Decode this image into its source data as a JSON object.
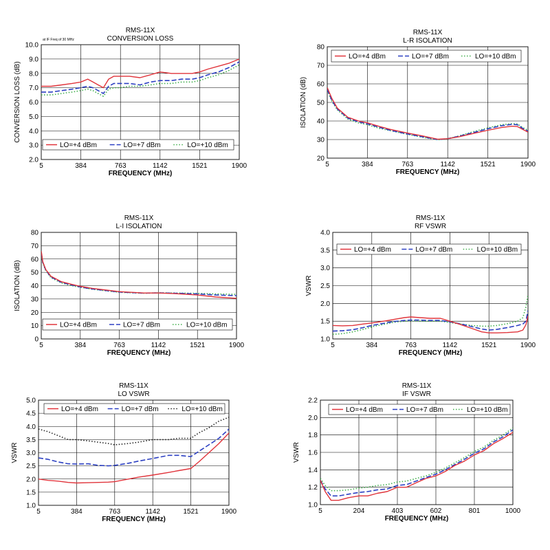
{
  "chart_data": [
    {
      "type": "line",
      "title": "RMS-11X",
      "subtitle": "CONVERSION LOSS",
      "annotation": "at IF Freq of 30 MHz",
      "xlabel": "FREQUENCY (MHz)",
      "ylabel": "CONVERSION LOSS (dB)",
      "x_ticks": [
        "5",
        "384",
        "763",
        "1142",
        "1521",
        "1900"
      ],
      "xlim": [
        5,
        1900
      ],
      "ylim": [
        2.0,
        10.0
      ],
      "y_ticks": [
        "2.0",
        "3.0",
        "4.0",
        "5.0",
        "6.0",
        "7.0",
        "8.0",
        "9.0",
        "10.0"
      ],
      "legend": "bottom",
      "grid": true,
      "series": [
        {
          "name": "LO=+4 dBm",
          "color": "#e0333a",
          "dash": "solid",
          "x": [
            5,
            100,
            200,
            300,
            384,
            450,
            500,
            550,
            600,
            650,
            700,
            763,
            850,
            950,
            1050,
            1142,
            1250,
            1350,
            1450,
            1521,
            1600,
            1700,
            1800,
            1900
          ],
          "y": [
            7.1,
            7.1,
            7.2,
            7.3,
            7.4,
            7.6,
            7.4,
            7.2,
            7.0,
            7.6,
            7.8,
            7.8,
            7.8,
            7.7,
            7.9,
            8.1,
            8.0,
            8.0,
            8.0,
            8.1,
            8.3,
            8.5,
            8.7,
            9.0
          ]
        },
        {
          "name": "LO=+7 dBm",
          "color": "#2b3fc2",
          "dash": "long",
          "x": [
            5,
            100,
            200,
            300,
            384,
            450,
            500,
            550,
            600,
            650,
            700,
            763,
            850,
            950,
            1050,
            1142,
            1250,
            1350,
            1450,
            1521,
            1600,
            1700,
            1800,
            1900
          ],
          "y": [
            6.7,
            6.7,
            6.8,
            6.9,
            7.0,
            7.1,
            7.0,
            6.8,
            6.6,
            7.1,
            7.3,
            7.3,
            7.3,
            7.2,
            7.4,
            7.5,
            7.5,
            7.6,
            7.6,
            7.7,
            7.9,
            8.1,
            8.4,
            8.8
          ]
        },
        {
          "name": "LO=+10 dBm",
          "color": "#3fae4a",
          "dash": "dot",
          "x": [
            5,
            100,
            200,
            300,
            384,
            450,
            500,
            550,
            600,
            650,
            700,
            763,
            850,
            950,
            1050,
            1142,
            1250,
            1350,
            1450,
            1521,
            1600,
            1700,
            1800,
            1900
          ],
          "y": [
            6.5,
            6.5,
            6.6,
            6.7,
            6.8,
            6.9,
            6.8,
            6.6,
            6.4,
            6.9,
            7.0,
            7.0,
            7.1,
            7.1,
            7.2,
            7.3,
            7.3,
            7.4,
            7.4,
            7.5,
            7.7,
            7.9,
            8.2,
            8.6
          ]
        }
      ]
    },
    {
      "type": "line",
      "title": "RMS-11X",
      "subtitle": "L-R ISOLATION",
      "xlabel": "FREQUENCY (MHz)",
      "ylabel": "ISOLATION (dB)",
      "x_ticks": [
        "5",
        "384",
        "763",
        "1142",
        "1521",
        "1900"
      ],
      "xlim": [
        5,
        1900
      ],
      "ylim": [
        20,
        80
      ],
      "y_ticks": [
        "20",
        "30",
        "40",
        "50",
        "60",
        "70",
        "80"
      ],
      "legend": "top",
      "grid": true,
      "series": [
        {
          "name": "LO=+4 dBm",
          "color": "#e0333a",
          "dash": "solid",
          "x": [
            5,
            50,
            100,
            200,
            300,
            384,
            500,
            600,
            763,
            900,
            1050,
            1142,
            1250,
            1400,
            1521,
            1650,
            1750,
            1800,
            1850,
            1900
          ],
          "y": [
            58,
            52,
            47,
            42,
            40,
            39,
            37,
            35.5,
            33.5,
            32,
            30.2,
            30.5,
            31.5,
            33.5,
            35,
            36.5,
            37.2,
            37,
            35.5,
            34
          ]
        },
        {
          "name": "LO=+7 dBm",
          "color": "#2b3fc2",
          "dash": "long",
          "x": [
            5,
            50,
            100,
            200,
            300,
            384,
            500,
            600,
            763,
            900,
            1050,
            1142,
            1250,
            1400,
            1521,
            1650,
            1750,
            1800,
            1850,
            1900
          ],
          "y": [
            57,
            51,
            46.5,
            41.5,
            39.5,
            38.5,
            36.5,
            35,
            33,
            31.5,
            30,
            30.5,
            31.8,
            34,
            35.8,
            37.5,
            38.2,
            38,
            36,
            34.5
          ]
        },
        {
          "name": "LO=+10 dBm",
          "color": "#3fae4a",
          "dash": "dot",
          "x": [
            5,
            50,
            100,
            200,
            300,
            384,
            500,
            600,
            763,
            900,
            1050,
            1142,
            1250,
            1400,
            1521,
            1650,
            1750,
            1800,
            1850,
            1900
          ],
          "y": [
            56.5,
            50.5,
            46,
            41,
            39,
            38,
            36,
            34.8,
            32.8,
            31.3,
            29.9,
            30.4,
            32,
            34.5,
            36.3,
            38,
            38.6,
            38.4,
            36.5,
            35
          ]
        }
      ]
    },
    {
      "type": "line",
      "title": "RMS-11X",
      "subtitle": "L-I ISOLATION",
      "xlabel": "FREQUENCY (MHz)",
      "ylabel": "ISOLATION (dB)",
      "x_ticks": [
        "5",
        "384",
        "763",
        "1142",
        "1521",
        "1900"
      ],
      "xlim": [
        5,
        1900
      ],
      "ylim": [
        0,
        80
      ],
      "y_ticks": [
        "0",
        "10",
        "20",
        "30",
        "40",
        "50",
        "60",
        "70",
        "80"
      ],
      "legend": "bottom",
      "grid": true,
      "series": [
        {
          "name": "LO=+4 dBm",
          "color": "#e0333a",
          "dash": "solid",
          "x": [
            5,
            20,
            50,
            100,
            200,
            300,
            384,
            500,
            763,
            1000,
            1142,
            1300,
            1521,
            1700,
            1900
          ],
          "y": [
            66,
            58,
            52,
            47,
            43,
            41,
            39.5,
            38,
            35.5,
            34.5,
            34.5,
            34,
            33,
            31.5,
            30.5
          ]
        },
        {
          "name": "LO=+7 dBm",
          "color": "#2b3fc2",
          "dash": "long",
          "x": [
            5,
            20,
            50,
            100,
            200,
            300,
            384,
            500,
            763,
            1000,
            1142,
            1300,
            1521,
            1700,
            1900
          ],
          "y": [
            65,
            57.5,
            51.5,
            46.5,
            42.5,
            40.5,
            39,
            37.5,
            35.2,
            34.4,
            34.6,
            34.3,
            33.8,
            33,
            32.5
          ]
        },
        {
          "name": "LO=+10 dBm",
          "color": "#3fae4a",
          "dash": "dot",
          "x": [
            5,
            20,
            50,
            100,
            200,
            300,
            384,
            500,
            763,
            1000,
            1142,
            1300,
            1521,
            1700,
            1900
          ],
          "y": [
            64,
            57,
            51,
            46,
            42,
            40,
            38.8,
            37.3,
            35,
            34.3,
            34.6,
            34.5,
            34.2,
            33.8,
            33.5
          ]
        }
      ]
    },
    {
      "type": "line",
      "title": "RMS-11X",
      "subtitle": "RF VSWR",
      "xlabel": "FREQUENCY (MHz)",
      "ylabel": "VSWR",
      "x_ticks": [
        "5",
        "384",
        "763",
        "1142",
        "1521",
        "1900"
      ],
      "xlim": [
        5,
        1900
      ],
      "ylim": [
        1.0,
        4.0
      ],
      "y_ticks": [
        "1.0",
        "1.5",
        "2.0",
        "2.5",
        "3.0",
        "3.5",
        "4.0"
      ],
      "legend": "top",
      "grid": true,
      "series": [
        {
          "name": "LO=+4 dBm",
          "color": "#e0333a",
          "dash": "solid",
          "x": [
            5,
            100,
            200,
            300,
            384,
            500,
            600,
            700,
            763,
            850,
            950,
            1050,
            1142,
            1250,
            1350,
            1450,
            1521,
            1600,
            1700,
            1800,
            1850,
            1880,
            1900
          ],
          "y": [
            1.38,
            1.37,
            1.38,
            1.42,
            1.45,
            1.5,
            1.55,
            1.6,
            1.62,
            1.6,
            1.58,
            1.58,
            1.5,
            1.4,
            1.3,
            1.2,
            1.17,
            1.17,
            1.18,
            1.2,
            1.25,
            1.4,
            1.65
          ]
        },
        {
          "name": "LO=+7 dBm",
          "color": "#2b3fc2",
          "dash": "long",
          "x": [
            5,
            100,
            200,
            300,
            384,
            500,
            600,
            700,
            763,
            850,
            950,
            1050,
            1142,
            1250,
            1350,
            1450,
            1521,
            1600,
            1700,
            1800,
            1850,
            1880,
            1900
          ],
          "y": [
            1.22,
            1.23,
            1.26,
            1.32,
            1.38,
            1.44,
            1.49,
            1.52,
            1.53,
            1.53,
            1.52,
            1.52,
            1.48,
            1.42,
            1.35,
            1.28,
            1.25,
            1.27,
            1.32,
            1.38,
            1.42,
            1.5,
            1.8
          ]
        },
        {
          "name": "LO=+10 dBm",
          "color": "#3fae4a",
          "dash": "dot",
          "x": [
            5,
            100,
            200,
            300,
            384,
            500,
            600,
            700,
            763,
            850,
            950,
            1050,
            1142,
            1250,
            1350,
            1450,
            1521,
            1600,
            1700,
            1800,
            1850,
            1880,
            1900
          ],
          "y": [
            1.13,
            1.15,
            1.2,
            1.27,
            1.34,
            1.41,
            1.47,
            1.5,
            1.51,
            1.5,
            1.5,
            1.5,
            1.46,
            1.42,
            1.38,
            1.36,
            1.36,
            1.38,
            1.43,
            1.5,
            1.6,
            1.9,
            2.25
          ]
        }
      ]
    },
    {
      "type": "line",
      "title": "RMS-11X",
      "subtitle": "LO VSWR",
      "xlabel": "FREQUENCY (MHz)",
      "ylabel": "VSWR",
      "x_ticks": [
        "5",
        "384",
        "763",
        "1142",
        "1521",
        "1900"
      ],
      "xlim": [
        5,
        1900
      ],
      "ylim": [
        1.0,
        5.0
      ],
      "y_ticks": [
        "1.0",
        "1.5",
        "2.0",
        "2.5",
        "3.0",
        "3.5",
        "4.0",
        "4.5",
        "5.0"
      ],
      "legend": "top",
      "grid": true,
      "series": [
        {
          "name": "LO=+4 dBm",
          "color": "#e0333a",
          "dash": "solid",
          "x": [
            5,
            100,
            200,
            300,
            384,
            500,
            600,
            700,
            763,
            900,
            1000,
            1142,
            1300,
            1400,
            1521,
            1600,
            1700,
            1800,
            1900
          ],
          "y": [
            2.0,
            1.95,
            1.92,
            1.87,
            1.85,
            1.86,
            1.87,
            1.88,
            1.9,
            2.0,
            2.07,
            2.15,
            2.25,
            2.32,
            2.4,
            2.65,
            3.0,
            3.35,
            3.75
          ]
        },
        {
          "name": "LO=+7 dBm",
          "color": "#2b3fc2",
          "dash": "long",
          "x": [
            5,
            100,
            200,
            300,
            384,
            500,
            600,
            700,
            763,
            900,
            1000,
            1142,
            1300,
            1400,
            1521,
            1600,
            1700,
            1800,
            1900
          ],
          "y": [
            2.8,
            2.75,
            2.65,
            2.58,
            2.57,
            2.58,
            2.52,
            2.5,
            2.52,
            2.6,
            2.68,
            2.78,
            2.9,
            2.9,
            2.85,
            3.05,
            3.3,
            3.55,
            3.9
          ]
        },
        {
          "name": "LO=+10 dBm",
          "color": "#222222",
          "dash": "dot",
          "x": [
            5,
            100,
            200,
            300,
            384,
            500,
            600,
            700,
            763,
            900,
            1000,
            1142,
            1300,
            1400,
            1521,
            1600,
            1700,
            1800,
            1900
          ],
          "y": [
            3.9,
            3.8,
            3.65,
            3.5,
            3.5,
            3.45,
            3.4,
            3.35,
            3.3,
            3.35,
            3.4,
            3.5,
            3.5,
            3.55,
            3.55,
            3.75,
            3.95,
            4.2,
            4.35
          ]
        }
      ]
    },
    {
      "type": "line",
      "title": "RMS-11X",
      "subtitle": "IF VSWR",
      "xlabel": "FREQUENCY (MHz)",
      "ylabel": "VSWR",
      "x_ticks": [
        "5",
        "204",
        "403",
        "602",
        "801",
        "1000"
      ],
      "xlim": [
        5,
        1000
      ],
      "ylim": [
        1.0,
        2.2
      ],
      "y_ticks": [
        "1.0",
        "1.2",
        "1.4",
        "1.6",
        "1.8",
        "2.0",
        "2.2"
      ],
      "legend": "top",
      "grid": true,
      "series": [
        {
          "name": "LO=+4 dBm",
          "color": "#e0333a",
          "dash": "solid",
          "x": [
            5,
            30,
            60,
            100,
            150,
            204,
            250,
            300,
            350,
            403,
            450,
            500,
            550,
            602,
            650,
            700,
            750,
            801,
            850,
            900,
            950,
            1000
          ],
          "y": [
            1.28,
            1.15,
            1.05,
            1.05,
            1.08,
            1.1,
            1.1,
            1.13,
            1.15,
            1.2,
            1.2,
            1.25,
            1.3,
            1.33,
            1.38,
            1.45,
            1.5,
            1.57,
            1.62,
            1.7,
            1.76,
            1.83
          ]
        },
        {
          "name": "LO=+7 dBm",
          "color": "#2b3fc2",
          "dash": "long",
          "x": [
            5,
            30,
            60,
            100,
            150,
            204,
            250,
            300,
            350,
            403,
            450,
            500,
            550,
            602,
            650,
            700,
            750,
            801,
            850,
            900,
            950,
            1000
          ],
          "y": [
            1.28,
            1.18,
            1.1,
            1.1,
            1.12,
            1.14,
            1.15,
            1.17,
            1.18,
            1.22,
            1.23,
            1.27,
            1.31,
            1.35,
            1.4,
            1.46,
            1.52,
            1.59,
            1.64,
            1.72,
            1.78,
            1.86
          ]
        },
        {
          "name": "LO=+10 dBm",
          "color": "#3fae4a",
          "dash": "dot",
          "x": [
            5,
            30,
            60,
            100,
            150,
            204,
            250,
            300,
            350,
            403,
            450,
            500,
            550,
            602,
            650,
            700,
            750,
            801,
            850,
            900,
            950,
            1000
          ],
          "y": [
            1.3,
            1.22,
            1.16,
            1.16,
            1.17,
            1.19,
            1.2,
            1.22,
            1.23,
            1.26,
            1.27,
            1.3,
            1.33,
            1.37,
            1.42,
            1.48,
            1.54,
            1.61,
            1.66,
            1.74,
            1.8,
            1.88
          ]
        }
      ]
    }
  ]
}
